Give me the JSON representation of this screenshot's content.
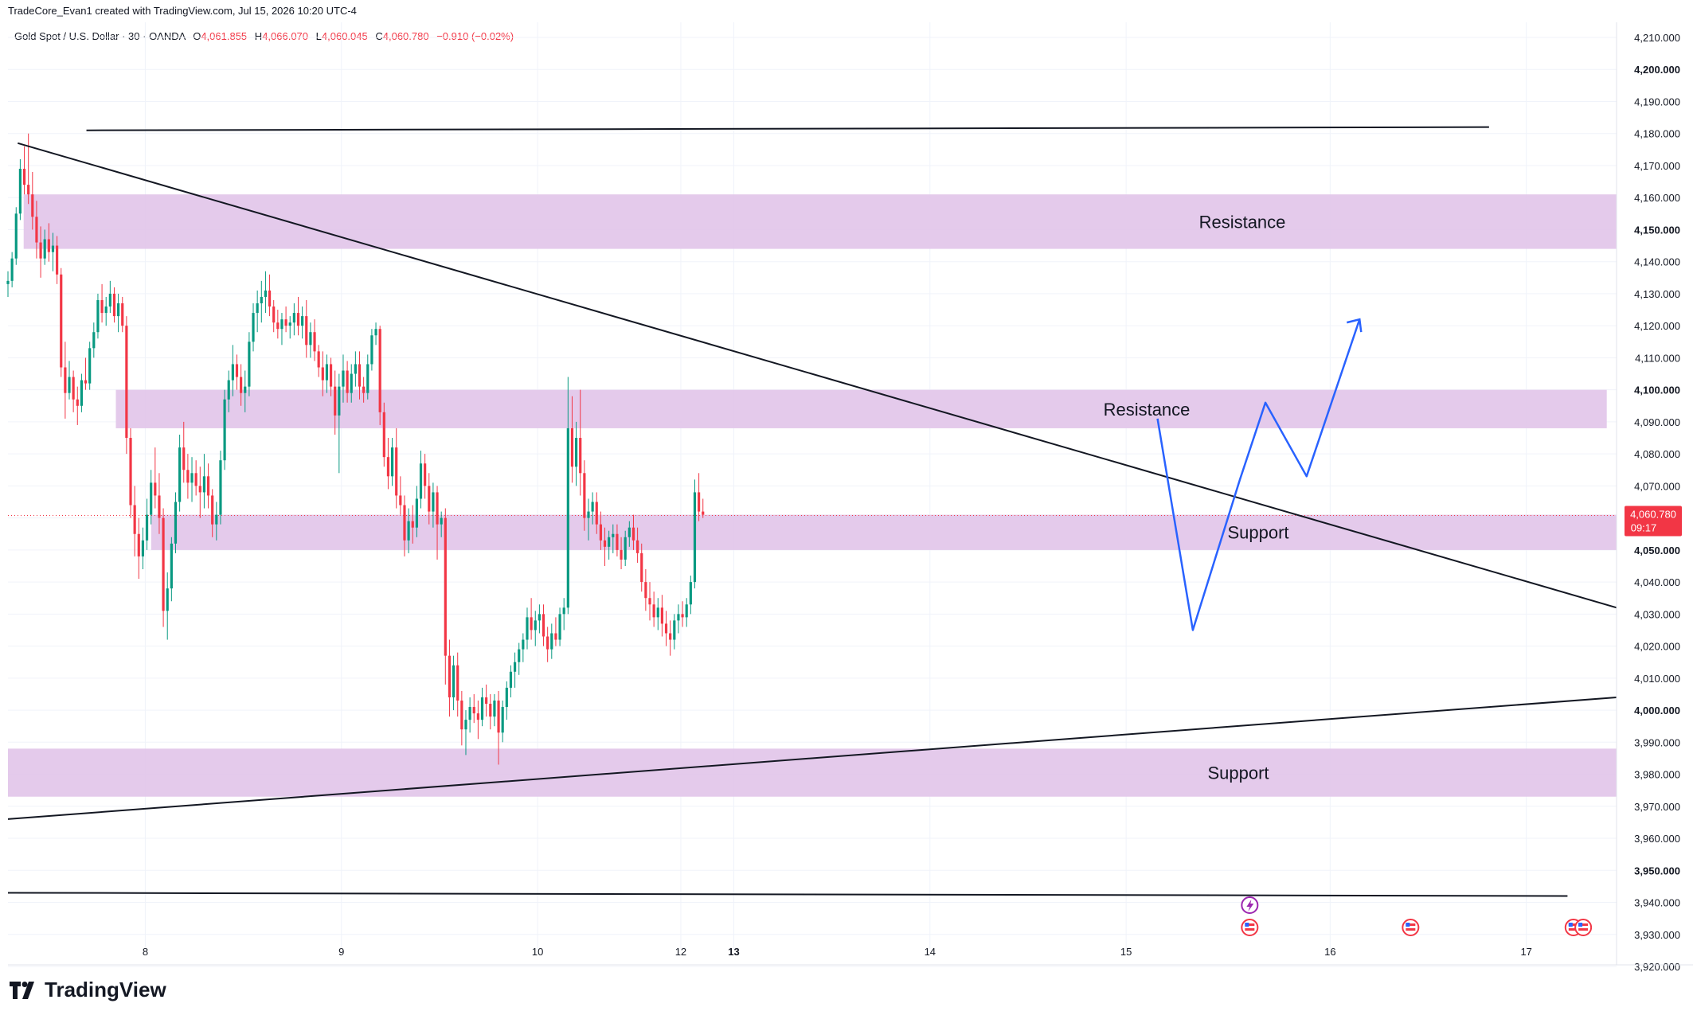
{
  "credit": "TradeCore_Evan1 created with TradingView.com, Jul 15, 2026 10:20 UTC-4",
  "legend": {
    "symbol": "Gold Spot / U.S. Dollar · 30 · OANDA",
    "open_label": "O",
    "open": "4,061.855",
    "high_label": "H",
    "high": "4,066.070",
    "low_label": "L",
    "low": "4,060.045",
    "close_label": "C",
    "close": "4,060.780",
    "change": "−0.910 (−0.02%)"
  },
  "brand": "TradingView",
  "colors": {
    "up": "#089981",
    "down": "#f23645",
    "zone": "#e1c4e9",
    "trendline": "#131722",
    "projection": "#2962ff",
    "grid": "#f0f3fa"
  },
  "chart_data": {
    "type": "candlestick",
    "ylim": [
      3910,
      4215
    ],
    "yticks": [
      "4,210.000",
      "4,200.000",
      "4,190.000",
      "4,180.000",
      "4,170.000",
      "4,160.000",
      "4,150.000",
      "4,140.000",
      "4,130.000",
      "4,120.000",
      "4,110.000",
      "4,100.000",
      "4,090.000",
      "4,080.000",
      "4,070.000",
      "4,060.000",
      "4,050.000",
      "4,040.000",
      "4,030.000",
      "4,020.000",
      "4,010.000",
      "4,000.000",
      "3,990.000",
      "3,980.000",
      "3,970.000",
      "3,960.000",
      "3,950.000",
      "3,940.000",
      "3,930.000",
      "3,920.000"
    ],
    "ytick_values": [
      4210,
      4200,
      4190,
      4180,
      4170,
      4160,
      4150,
      4140,
      4130,
      4120,
      4110,
      4100,
      4090,
      4080,
      4070,
      4060,
      4050,
      4040,
      4030,
      4020,
      4010,
      4000,
      3990,
      3980,
      3970,
      3960,
      3950,
      3940,
      3930,
      3920
    ],
    "xticks": [
      {
        "label": "8",
        "t": 7.75
      },
      {
        "label": "9",
        "t": 8.75
      },
      {
        "label": "10",
        "t": 9.75
      },
      {
        "label": "12",
        "t": 10.48
      },
      {
        "label": "13",
        "t": 10.75
      },
      {
        "label": "14",
        "t": 11.75
      },
      {
        "label": "15",
        "t": 12.75
      },
      {
        "label": "16",
        "t": 13.79
      },
      {
        "label": "17",
        "t": 14.79
      }
    ],
    "price_label": {
      "price": 4060.78,
      "text": "4,060.780",
      "countdown": "09:17"
    },
    "zones": [
      {
        "label": "Resistance",
        "low": 4144,
        "high": 4161,
        "t0": 7.13,
        "t1": 15.25
      },
      {
        "label": "Resistance",
        "low": 4088,
        "high": 4100,
        "t0": 7.6,
        "t1": 15.2
      },
      {
        "label": "Support",
        "low": 4050,
        "high": 4061,
        "t0": 7.78,
        "t1": 15.25
      },
      {
        "label": "Support",
        "low": 3973,
        "high": 3988,
        "t0": 7.05,
        "t1": 15.25
      }
    ],
    "trendlines": [
      {
        "t0": 7.1,
        "p0": 4177,
        "t1": 15.25,
        "p1": 4032
      },
      {
        "t0": 7.45,
        "p0": 4181,
        "t1": 14.6,
        "p1": 4182
      },
      {
        "t0": 7.05,
        "p0": 3966,
        "t1": 15.25,
        "p1": 4004
      },
      {
        "t0": 7.05,
        "p0": 3943,
        "t1": 15.0,
        "p1": 3942
      }
    ],
    "projection": [
      {
        "t": 12.91,
        "p": 4091
      },
      {
        "t": 13.09,
        "p": 4025
      },
      {
        "t": 13.33,
        "p": 4072
      },
      {
        "t": 13.46,
        "p": 4096
      },
      {
        "t": 13.67,
        "p": 4073
      },
      {
        "t": 13.94,
        "p": 4122
      }
    ],
    "projection_arrow": {
      "t": 13.94,
      "p": 4122
    },
    "event_icons": [
      {
        "t": 13.38,
        "kind": "flash"
      },
      {
        "t": 13.38,
        "kind": "us-flag"
      },
      {
        "t": 14.2,
        "kind": "us-flag"
      },
      {
        "t": 15.03,
        "kind": "us-flag"
      },
      {
        "t": 15.08,
        "kind": "us-flag"
      }
    ],
    "candles": {
      "start_t": 7.05,
      "step_t": 0.02084,
      "ohlc": [
        [
          4133,
          4137,
          4129,
          4134
        ],
        [
          4134,
          4143,
          4132,
          4141
        ],
        [
          4141,
          4157,
          4139,
          4155
        ],
        [
          4155,
          4172,
          4153,
          4169
        ],
        [
          4169,
          4176,
          4161,
          4164
        ],
        [
          4164,
          4180,
          4158,
          4161
        ],
        [
          4161,
          4168,
          4150,
          4154
        ],
        [
          4154,
          4159,
          4141,
          4146
        ],
        [
          4146,
          4151,
          4135,
          4141
        ],
        [
          4141,
          4150,
          4139,
          4147
        ],
        [
          4147,
          4152,
          4140,
          4143
        ],
        [
          4143,
          4149,
          4137,
          4145
        ],
        [
          4145,
          4148,
          4133,
          4136
        ],
        [
          4136,
          4138,
          4104,
          4107
        ],
        [
          4107,
          4115,
          4091,
          4099
        ],
        [
          4099,
          4109,
          4097,
          4104
        ],
        [
          4104,
          4106,
          4093,
          4097
        ],
        [
          4097,
          4101,
          4089,
          4095
        ],
        [
          4095,
          4105,
          4093,
          4103
        ],
        [
          4103,
          4110,
          4100,
          4102
        ],
        [
          4102,
          4115,
          4100,
          4113
        ],
        [
          4113,
          4121,
          4110,
          4118
        ],
        [
          4118,
          4130,
          4116,
          4128
        ],
        [
          4128,
          4133,
          4121,
          4124
        ],
        [
          4124,
          4129,
          4120,
          4126
        ],
        [
          4126,
          4134,
          4124,
          4130
        ],
        [
          4130,
          4132,
          4121,
          4123
        ],
        [
          4123,
          4130,
          4118,
          4127
        ],
        [
          4127,
          4129,
          4118,
          4120
        ],
        [
          4120,
          4123,
          4080,
          4085
        ],
        [
          4085,
          4088,
          4060,
          4064
        ],
        [
          4064,
          4070,
          4048,
          4055
        ],
        [
          4055,
          4060,
          4041,
          4048
        ],
        [
          4048,
          4057,
          4044,
          4053
        ],
        [
          4053,
          4066,
          4050,
          4061
        ],
        [
          4061,
          4075,
          4058,
          4071
        ],
        [
          4071,
          4082,
          4063,
          4067
        ],
        [
          4067,
          4074,
          4055,
          4060
        ],
        [
          4060,
          4063,
          4026,
          4031
        ],
        [
          4031,
          4043,
          4022,
          4038
        ],
        [
          4038,
          4054,
          4034,
          4052
        ],
        [
          4052,
          4068,
          4049,
          4065
        ],
        [
          4065,
          4086,
          4062,
          4082
        ],
        [
          4082,
          4090,
          4071,
          4075
        ],
        [
          4075,
          4080,
          4066,
          4071
        ],
        [
          4071,
          4079,
          4065,
          4074
        ],
        [
          4074,
          4078,
          4067,
          4070
        ],
        [
          4070,
          4076,
          4060,
          4068
        ],
        [
          4068,
          4080,
          4063,
          4073
        ],
        [
          4073,
          4077,
          4063,
          4067
        ],
        [
          4067,
          4069,
          4054,
          4058
        ],
        [
          4058,
          4065,
          4053,
          4061
        ],
        [
          4061,
          4081,
          4058,
          4078
        ],
        [
          4078,
          4100,
          4075,
          4097
        ],
        [
          4097,
          4106,
          4093,
          4103
        ],
        [
          4103,
          4114,
          4098,
          4108
        ],
        [
          4108,
          4111,
          4100,
          4104
        ],
        [
          4104,
          4108,
          4095,
          4099
        ],
        [
          4099,
          4106,
          4093,
          4101
        ],
        [
          4101,
          4118,
          4098,
          4115
        ],
        [
          4115,
          4127,
          4112,
          4124
        ],
        [
          4124,
          4131,
          4118,
          4127
        ],
        [
          4127,
          4134,
          4121,
          4129
        ],
        [
          4129,
          4137,
          4124,
          4131
        ],
        [
          4131,
          4136,
          4123,
          4126
        ],
        [
          4126,
          4128,
          4118,
          4121
        ],
        [
          4121,
          4125,
          4116,
          4119
        ],
        [
          4119,
          4124,
          4114,
          4122
        ],
        [
          4122,
          4126,
          4118,
          4120
        ],
        [
          4120,
          4123,
          4116,
          4121
        ],
        [
          4121,
          4127,
          4117,
          4124
        ],
        [
          4124,
          4129,
          4117,
          4120
        ],
        [
          4120,
          4126,
          4116,
          4123
        ],
        [
          4123,
          4128,
          4110,
          4114
        ],
        [
          4114,
          4121,
          4110,
          4118
        ],
        [
          4118,
          4122,
          4109,
          4112
        ],
        [
          4112,
          4114,
          4104,
          4107
        ],
        [
          4107,
          4112,
          4098,
          4103
        ],
        [
          4103,
          4111,
          4099,
          4108
        ],
        [
          4108,
          4110,
          4098,
          4101
        ],
        [
          4101,
          4106,
          4086,
          4092
        ],
        [
          4092,
          4105,
          4074,
          4101
        ],
        [
          4101,
          4111,
          4096,
          4106
        ],
        [
          4106,
          4109,
          4096,
          4099
        ],
        [
          4099,
          4108,
          4096,
          4105
        ],
        [
          4105,
          4112,
          4101,
          4108
        ],
        [
          4108,
          4112,
          4097,
          4101
        ],
        [
          4101,
          4104,
          4096,
          4099
        ],
        [
          4099,
          4111,
          4097,
          4108
        ],
        [
          4108,
          4119,
          4106,
          4117
        ],
        [
          4117,
          4121,
          4114,
          4119
        ],
        [
          4119,
          4120,
          4089,
          4093
        ],
        [
          4093,
          4096,
          4076,
          4079
        ],
        [
          4079,
          4085,
          4069,
          4073
        ],
        [
          4073,
          4085,
          4070,
          4082
        ],
        [
          4082,
          4088,
          4063,
          4067
        ],
        [
          4067,
          4073,
          4061,
          4064
        ],
        [
          4064,
          4067,
          4048,
          4053
        ],
        [
          4053,
          4063,
          4049,
          4059
        ],
        [
          4059,
          4064,
          4052,
          4057
        ],
        [
          4057,
          4070,
          4054,
          4066
        ],
        [
          4066,
          4081,
          4063,
          4077
        ],
        [
          4077,
          4080,
          4066,
          4070
        ],
        [
          4070,
          4074,
          4058,
          4062
        ],
        [
          4062,
          4071,
          4057,
          4068
        ],
        [
          4068,
          4070,
          4047,
          4058
        ],
        [
          4058,
          4062,
          4054,
          4060
        ],
        [
          4060,
          4063,
          4008,
          4017
        ],
        [
          4017,
          4022,
          3998,
          4004
        ],
        [
          4004,
          4017,
          4000,
          4014
        ],
        [
          4014,
          4018,
          3998,
          4003
        ],
        [
          4003,
          4006,
          3989,
          3994
        ],
        [
          3994,
          4000,
          3986,
          3997
        ],
        [
          3997,
          4004,
          3993,
          4001
        ],
        [
          4001,
          4005,
          3996,
          3999
        ],
        [
          3999,
          4003,
          3991,
          3997
        ],
        [
          3997,
          4007,
          3995,
          4004
        ],
        [
          4004,
          4008,
          3998,
          4002
        ],
        [
          4002,
          4005,
          3994,
          3998
        ],
        [
          3998,
          4005,
          3995,
          4003
        ],
        [
          4003,
          4006,
          3983,
          3993
        ],
        [
          3993,
          4003,
          3990,
          4001
        ],
        [
          4001,
          4009,
          3997,
          4007
        ],
        [
          4007,
          4014,
          4004,
          4012
        ],
        [
          4012,
          4018,
          4007,
          4015
        ],
        [
          4015,
          4021,
          4011,
          4019
        ],
        [
          4019,
          4024,
          4015,
          4022
        ],
        [
          4022,
          4032,
          4019,
          4029
        ],
        [
          4029,
          4035,
          4022,
          4025
        ],
        [
          4025,
          4031,
          4020,
          4028
        ],
        [
          4028,
          4033,
          4024,
          4030
        ],
        [
          4030,
          4033,
          4020,
          4023
        ],
        [
          4023,
          4026,
          4015,
          4019
        ],
        [
          4019,
          4027,
          4016,
          4024
        ],
        [
          4024,
          4029,
          4020,
          4022
        ],
        [
          4022,
          4032,
          4020,
          4030
        ],
        [
          4030,
          4035,
          4025,
          4032
        ],
        [
          4032,
          4104,
          4030,
          4088
        ],
        [
          4088,
          4098,
          4071,
          4076
        ],
        [
          4076,
          4090,
          4070,
          4085
        ],
        [
          4085,
          4100,
          4067,
          4074
        ],
        [
          4074,
          4078,
          4056,
          4060
        ],
        [
          4060,
          4066,
          4053,
          4062
        ],
        [
          4062,
          4068,
          4058,
          4065
        ],
        [
          4065,
          4068,
          4055,
          4058
        ],
        [
          4058,
          4062,
          4050,
          4053
        ],
        [
          4053,
          4057,
          4045,
          4051
        ],
        [
          4051,
          4056,
          4047,
          4054
        ],
        [
          4054,
          4058,
          4049,
          4055
        ],
        [
          4055,
          4058,
          4048,
          4050
        ],
        [
          4050,
          4054,
          4044,
          4047
        ],
        [
          4047,
          4056,
          4045,
          4054
        ],
        [
          4054,
          4059,
          4051,
          4057
        ],
        [
          4057,
          4061,
          4050,
          4053
        ],
        [
          4053,
          4057,
          4046,
          4049
        ],
        [
          4049,
          4052,
          4037,
          4040
        ],
        [
          4040,
          4044,
          4031,
          4035
        ],
        [
          4035,
          4040,
          4028,
          4033
        ],
        [
          4033,
          4037,
          4026,
          4029
        ],
        [
          4029,
          4035,
          4025,
          4032
        ],
        [
          4032,
          4036,
          4023,
          4027
        ],
        [
          4027,
          4031,
          4020,
          4024
        ],
        [
          4024,
          4028,
          4017,
          4022
        ],
        [
          4022,
          4030,
          4019,
          4028
        ],
        [
          4028,
          4033,
          4024,
          4030
        ],
        [
          4030,
          4034,
          4026,
          4029
        ],
        [
          4029,
          4035,
          4026,
          4033
        ],
        [
          4033,
          4042,
          4030,
          4040
        ],
        [
          4040,
          4072,
          4038,
          4068
        ],
        [
          4068,
          4074,
          4059,
          4062
        ],
        [
          4062,
          4066,
          4060,
          4061
        ]
      ]
    }
  }
}
